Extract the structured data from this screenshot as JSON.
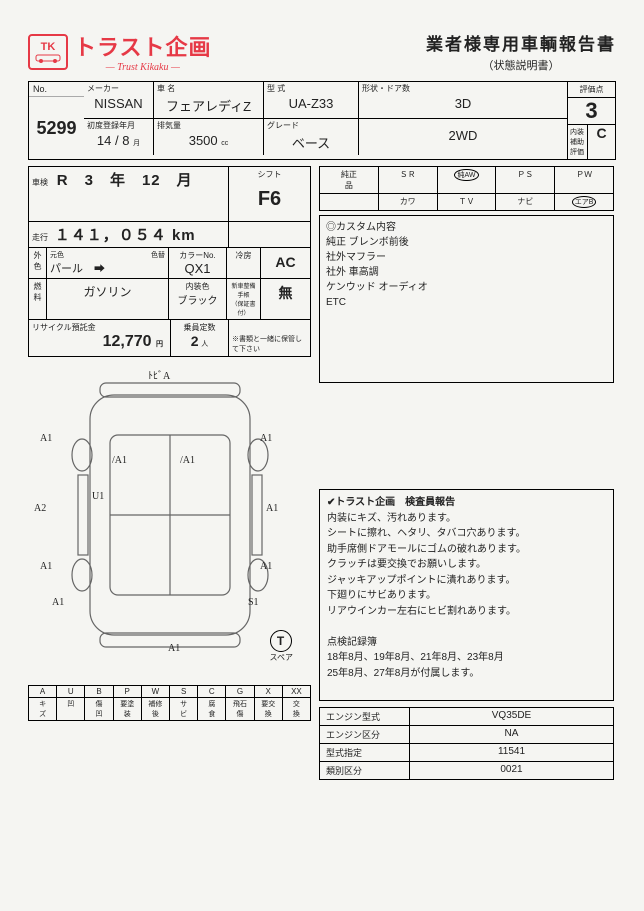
{
  "logo": {
    "tk": "TK",
    "jp": "トラスト企画",
    "en": "— Trust Kikaku —"
  },
  "header": {
    "title": "業者様専用車輌報告書",
    "subtitle": "（状態説明書）"
  },
  "no": {
    "label": "No.",
    "value": "5299"
  },
  "vehicle": {
    "maker_label": "メーカー",
    "maker": "NISSAN",
    "name_label": "車 名",
    "name": "フェアレディZ",
    "type_label": "型 式",
    "type": "UA-Z33",
    "shape_label": "形状・ドア数",
    "shape": "3D",
    "reg_label": "初度登録年月",
    "reg": "14 / 8",
    "reg_unit": "月",
    "disp_label": "排気量",
    "disp": "3500",
    "disp_unit": "cc",
    "grade_label": "グレード",
    "grade": "ベース",
    "drive": "2WD"
  },
  "score": {
    "label": "評価点",
    "main": "3",
    "sub_label": "内装\n補助評価",
    "sub": "C"
  },
  "detail": {
    "shaken_label": "車検",
    "shaken": "R　3　年　12　月",
    "shift_label": "シフト",
    "shift": "F6",
    "odo_label": "走行",
    "odo": "１４１，０５４ km",
    "ext_label": "外\n色",
    "orig_label": "元色",
    "orig": "パール",
    "change_label": "色替",
    "arrow": "➡",
    "colno_label": "カラーNo.",
    "colno": "QX1",
    "cool_label": "冷房",
    "cool": "AC",
    "fuel_label": "燃\n料",
    "fuel": "ガソリン",
    "int_label": "内装色",
    "int": "ブラック",
    "newcar_label": "新車整備手帳\n（保証書付）",
    "newcar": "無",
    "recycle_label": "リサイクル預託金",
    "recycle": "12,770",
    "recycle_unit": "円",
    "cap_label": "乗員定数",
    "cap": "2",
    "cap_unit": "人",
    "note": "※書類と一緒に保管して下さい"
  },
  "equip": {
    "r1": [
      "純正\n品",
      "ＳＲ",
      "純AW",
      "ＰＳ",
      "ＰＷ"
    ],
    "r2": [
      "",
      "カワ",
      "ＴＶ",
      "ナビ",
      "エアB"
    ]
  },
  "custom": {
    "title": "◎カスタム内容",
    "lines": [
      "純正 ブレンボ前後",
      "社外マフラー",
      "社外 車高調",
      "ケンウッド オーディオ",
      "ETC"
    ]
  },
  "legend": {
    "top": [
      "A",
      "U",
      "B",
      "P",
      "W",
      "S",
      "C",
      "G",
      "X",
      "XX"
    ],
    "bot": [
      "キ\nズ",
      "凹",
      "傷\n凹",
      "要塗\n装",
      "補修\n後",
      "サ\nビ",
      "腐\n食",
      "飛石\n傷",
      "要交\n換",
      "交\n換"
    ]
  },
  "report": {
    "title": "✔トラスト企画　検査員報告",
    "lines": [
      "内装にキズ、汚れあります。",
      "シートに擦れ、ヘタリ、タバコ穴あります。",
      "助手席側ドアモールにゴムの破れあります。",
      "クラッチは要交換でお願いします。",
      "ジャッキアップポイントに潰れあります。",
      "下廻りにサビあります。",
      "リアウインカー左右にヒビ割れあります。",
      "",
      "点検記録簿",
      "18年8月、19年8月、21年8月、23年8月",
      "25年8月、27年8月が付属します。"
    ]
  },
  "engine": {
    "rows": [
      [
        "エンジン型式",
        "VQ35DE"
      ],
      [
        "エンジン区分",
        "NA"
      ],
      [
        "型式指定",
        "11541"
      ],
      [
        "類別区分",
        "0021"
      ]
    ]
  },
  "spare": {
    "t": "T",
    "label": "スペア"
  },
  "marks": [
    "A1",
    "A1",
    "A1",
    "A1",
    "A1",
    "A2",
    "A1",
    "A1",
    "A1",
    "U1",
    "S1",
    "ﾄﾋﾞA",
    "/A1",
    "/A1"
  ],
  "colors": {
    "logo": "#e63946",
    "line": "#000000",
    "bg": "#f5f5f2"
  }
}
